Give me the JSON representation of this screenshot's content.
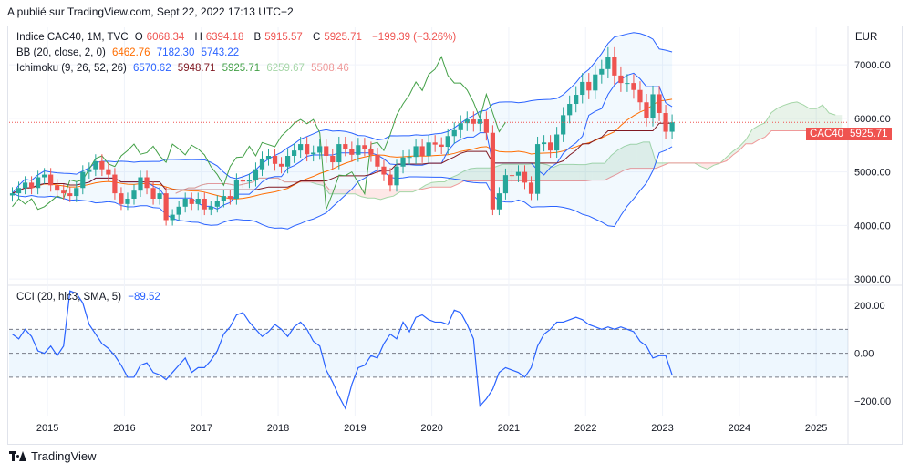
{
  "caption": "A publié sur TradingView.com, Sept 22, 2022 17:13 UTC+2",
  "legend": {
    "symbol": "Indice CAC40, 1M, TVC",
    "o_label": "O",
    "o": "6068.34",
    "h_label": "H",
    "h": "6394.18",
    "b_label": "B",
    "b": "5915.57",
    "c_label": "C",
    "c": "5925.71",
    "change": "−199.39 (−3.26%)",
    "bb_label": "BB (20, close, 2, 0)",
    "bb_mid": "6462.76",
    "bb_up": "7182.30",
    "bb_low": "5743.22",
    "ichi_label": "Ichimoku (9, 26, 52, 26)",
    "ichi1": "6570.62",
    "ichi2": "5948.71",
    "ichi3": "5925.71",
    "ichi4": "6259.67",
    "ichi5": "5508.46",
    "cci_label": "CCI (20, hlc3, SMA, 5)",
    "cci_val": "−89.52"
  },
  "currency": "EUR",
  "price_tag": {
    "symbol": "CAC40",
    "value": "5925.71"
  },
  "footer": "TradingView",
  "colors": {
    "up": "#26a69a",
    "down": "#ef5350",
    "bb_band": "#2962ff",
    "bb_mid": "#ff6d00",
    "tenkan": "#2962ff",
    "kijun": "#801922",
    "chikou": "#43a047",
    "cci": "#2962ff"
  },
  "chart_data": [
    {
      "type": "candlestick",
      "x_ticks": [
        "2015",
        "2016",
        "2017",
        "2018",
        "2019",
        "2020",
        "2021",
        "2022",
        "2023",
        "2024",
        "2025"
      ],
      "y_ticks": [
        "7000.00",
        "6000.00",
        "5000.00",
        "4000.00",
        "3000.00"
      ],
      "ylim": [
        2900,
        7700
      ],
      "closes": [
        4600,
        4700,
        4800,
        4700,
        4900,
        4950,
        4750,
        4650,
        4600,
        4550,
        4700,
        5000,
        5050,
        5200,
        5050,
        4950,
        4600,
        4400,
        4500,
        4650,
        4900,
        4700,
        4500,
        4600,
        4100,
        4200,
        4350,
        4500,
        4400,
        4500,
        4300,
        4350,
        4450,
        4550,
        4500,
        4850,
        4820,
        4850,
        5050,
        5250,
        5300,
        5150,
        5100,
        5300,
        5400,
        5520,
        5330,
        5360,
        5480,
        5300,
        5180,
        5520,
        5430,
        5320,
        5500,
        5430,
        5320,
        5100,
        4950,
        4750,
        5100,
        5270,
        5280,
        5480,
        5300,
        5550,
        5510,
        5470,
        5670,
        5780,
        5910,
        5980,
        5900,
        5980,
        5730,
        4300,
        4600,
        4940,
        4930,
        5000,
        4800,
        4590,
        5520,
        5550,
        5400,
        5700,
        6060,
        6270,
        6440,
        6680,
        6520,
        6820,
        6920,
        7150,
        6800,
        6660,
        6660,
        6530,
        6300,
        6000,
        6450,
        6100,
        5750,
        5926
      ],
      "series_ichimoku_cloud_hint": "senkou spans project 26 months ahead to late 2024"
    },
    {
      "type": "line",
      "name": "CCI (20, hlc3, SMA, 5)",
      "y_ticks": [
        "200.00",
        "0.00",
        "−200.00"
      ],
      "ylim": [
        -260,
        280
      ],
      "bands": [
        100,
        0,
        -100
      ],
      "values": [
        80,
        60,
        100,
        70,
        10,
        0,
        30,
        -10,
        30,
        260,
        250,
        210,
        120,
        80,
        40,
        20,
        -10,
        -50,
        -100,
        -100,
        -50,
        -40,
        -80,
        -90,
        -110,
        -80,
        -50,
        -20,
        -80,
        -60,
        -60,
        -30,
        10,
        80,
        110,
        160,
        170,
        130,
        100,
        70,
        90,
        120,
        100,
        70,
        110,
        130,
        100,
        50,
        30,
        -70,
        -120,
        -180,
        -230,
        -130,
        -60,
        -50,
        -10,
        -20,
        40,
        80,
        60,
        130,
        90,
        150,
        160,
        140,
        130,
        130,
        120,
        180,
        170,
        120,
        60,
        -220,
        -190,
        -150,
        -80,
        -60,
        -70,
        -80,
        -100,
        -60,
        30,
        80,
        100,
        130,
        130,
        140,
        150,
        140,
        120,
        110,
        100,
        110,
        100,
        110,
        100,
        90,
        50,
        30,
        -20,
        -10,
        -10,
        -90
      ]
    }
  ]
}
